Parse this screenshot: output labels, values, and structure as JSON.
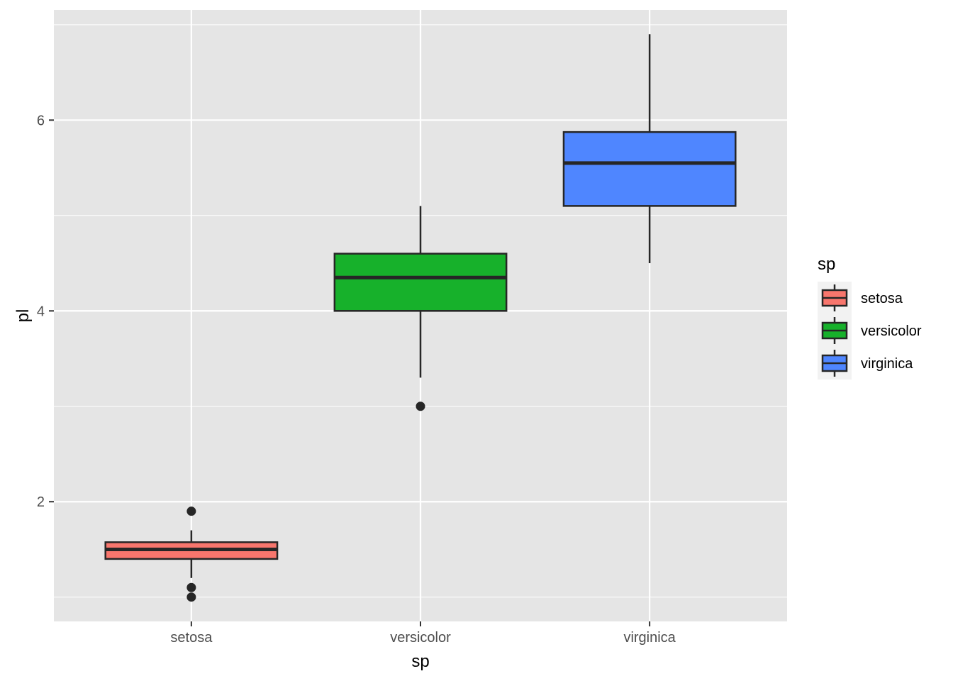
{
  "chart_data": {
    "type": "boxplot",
    "title": "",
    "xlabel": "sp",
    "ylabel": "pl",
    "categories": [
      "setosa",
      "versicolor",
      "virginica"
    ],
    "ylim": [
      0.745,
      7.155
    ],
    "y_ticks": [
      2,
      4,
      6
    ],
    "grid": true,
    "legend": {
      "title": "sp",
      "position": "right",
      "entries": [
        "setosa",
        "versicolor",
        "virginica"
      ]
    },
    "colors": {
      "setosa": "#F8766D",
      "versicolor": "#17B12B",
      "virginica": "#4F86FF",
      "panel_background": "#E5E5E5",
      "grid": "#FFFFFF",
      "outline": "#262626"
    },
    "series": [
      {
        "category": "setosa",
        "min": 1.2,
        "q1": 1.4,
        "median": 1.5,
        "q3": 1.575,
        "max": 1.7,
        "outliers": [
          1.9,
          1.1,
          1.0
        ]
      },
      {
        "category": "versicolor",
        "min": 3.3,
        "q1": 4.0,
        "median": 4.35,
        "q3": 4.6,
        "max": 5.1,
        "outliers": [
          3.0
        ]
      },
      {
        "category": "virginica",
        "min": 4.5,
        "q1": 5.1,
        "median": 5.55,
        "q3": 5.875,
        "max": 6.9,
        "outliers": []
      }
    ]
  }
}
